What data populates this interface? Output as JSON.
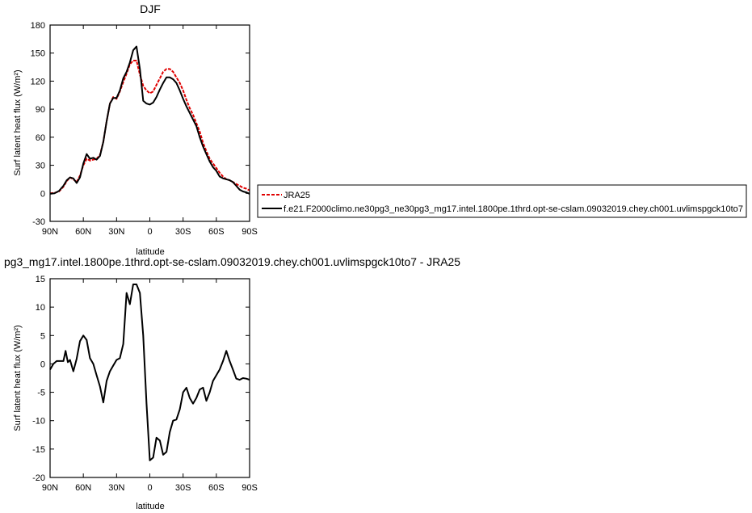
{
  "chart_data": [
    {
      "type": "line",
      "title": "DJF",
      "xlabel": "latitude",
      "ylabel": "Surf latent heat flux (W/m²)",
      "xlim": [
        -90,
        90
      ],
      "ylim": [
        -30,
        180
      ],
      "yticks": [
        -30,
        0,
        30,
        60,
        90,
        120,
        150,
        180
      ],
      "xticks": [
        -90,
        -60,
        -30,
        0,
        30,
        60,
        90
      ],
      "xticklabels": [
        "90N",
        "60N",
        "30N",
        "0",
        "30S",
        "60S",
        "90S"
      ],
      "legend": "right",
      "series": [
        {
          "name": "JRA25",
          "color": "#e00000",
          "dash": "dashed",
          "x": [
            -90,
            -86,
            -82,
            -78,
            -75,
            -72,
            -69,
            -66,
            -63,
            -60,
            -57,
            -54,
            -51,
            -48,
            -45,
            -42,
            -39,
            -36,
            -33,
            -30,
            -27,
            -24,
            -21,
            -18,
            -15,
            -12,
            -9,
            -6,
            -3,
            0,
            3,
            6,
            9,
            12,
            15,
            18,
            21,
            24,
            27,
            30,
            33,
            36,
            39,
            42,
            45,
            48,
            51,
            54,
            57,
            60,
            63,
            66,
            69,
            72,
            75,
            78,
            81,
            84,
            87,
            90
          ],
          "values": [
            0,
            0.5,
            2,
            7,
            13,
            17,
            15,
            12,
            19,
            30,
            37,
            35,
            36,
            37,
            41,
            55,
            77,
            96,
            103,
            101,
            109,
            119,
            128,
            138,
            142,
            142,
            127,
            115,
            110,
            107,
            109,
            116,
            123,
            130,
            133,
            133,
            130,
            124,
            118,
            110,
            100,
            91,
            84,
            75,
            66,
            54,
            45,
            37,
            32,
            27,
            22,
            18,
            15,
            14,
            12,
            10,
            8,
            6,
            5,
            3
          ],
          "legend_label": "JRA25"
        },
        {
          "name": "f.e21.F2000climo.ne30pg3_ne30pg3_mg17.intel.1800pe.1thrd.opt-se-cslam.09032019.chey.ch001.uvlimspgck10to7",
          "color": "#000000",
          "dash": "solid",
          "x": [
            -90,
            -86,
            -82,
            -78,
            -75,
            -72,
            -69,
            -66,
            -63,
            -60,
            -57,
            -54,
            -51,
            -48,
            -45,
            -42,
            -39,
            -36,
            -33,
            -30,
            -27,
            -24,
            -21,
            -18,
            -15,
            -12,
            -9,
            -6,
            -3,
            0,
            3,
            6,
            9,
            12,
            15,
            18,
            21,
            24,
            27,
            30,
            33,
            36,
            39,
            42,
            45,
            48,
            51,
            54,
            57,
            60,
            63,
            66,
            69,
            72,
            75,
            78,
            81,
            84,
            87,
            90
          ],
          "values": [
            -0.5,
            0,
            2.5,
            8,
            14,
            17,
            16,
            11,
            17,
            32,
            42,
            37,
            38,
            36,
            40,
            55,
            77,
            96,
            102,
            102,
            110,
            123,
            130,
            140,
            153,
            157,
            133,
            99,
            96,
            95,
            97,
            103,
            111,
            118,
            124,
            124,
            122,
            118,
            110,
            101,
            93,
            86,
            79,
            72,
            60,
            50,
            42,
            34,
            28,
            24,
            18,
            16,
            15,
            14,
            12,
            8,
            4,
            2,
            1,
            -0.5
          ],
          "legend_label": "f.e21.F2000climo.ne30pg3_ne30pg3_mg17.intel.1800pe.1thrd.opt-se-cslam.09032019.chey.ch001.uvlimspgck10to7"
        }
      ]
    },
    {
      "type": "line",
      "title": "pg3_mg17.intel.1800pe.1thrd.opt-se-cslam.09032019.chey.ch001.uvlimspgck10to7 - JRA25",
      "xlabel": "latitude",
      "ylabel": "Surf latent heat flux (W/m²)",
      "xlim": [
        -90,
        90
      ],
      "ylim": [
        -20,
        15
      ],
      "yticks": [
        -20,
        -15,
        -10,
        -5,
        0,
        5,
        10,
        15
      ],
      "xticks": [
        -90,
        -60,
        -30,
        0,
        30,
        60,
        90
      ],
      "xticklabels": [
        "90N",
        "60N",
        "30N",
        "0",
        "30S",
        "60S",
        "90S"
      ],
      "series": [
        {
          "color": "#000000",
          "x": [
            -90,
            -87,
            -84,
            -81,
            -78,
            -76,
            -74,
            -72,
            -69,
            -66,
            -63,
            -60,
            -57,
            -54,
            -51,
            -48,
            -45,
            -42,
            -39,
            -36,
            -33,
            -30,
            -27,
            -24,
            -21,
            -18,
            -15,
            -12,
            -9,
            -6,
            -3,
            0,
            3,
            6,
            9,
            12,
            15,
            18,
            21,
            24,
            27,
            30,
            33,
            36,
            39,
            42,
            45,
            48,
            51,
            54,
            57,
            60,
            63,
            66,
            69,
            72,
            75,
            78,
            81,
            84,
            87,
            90
          ],
          "values": [
            -1,
            0,
            0.5,
            0.5,
            0.5,
            2.3,
            0.3,
            0.7,
            -1.3,
            0.9,
            4,
            5,
            4.2,
            1,
            0,
            -2,
            -4,
            -6.8,
            -3,
            -1.3,
            -0.3,
            0.7,
            1,
            3.5,
            12.5,
            10.5,
            14,
            14,
            12.5,
            5,
            -7,
            -17,
            -16.5,
            -13,
            -13.5,
            -16,
            -15.5,
            -12,
            -10,
            -9.8,
            -8,
            -5,
            -4.2,
            -6,
            -7,
            -6,
            -4.5,
            -4.2,
            -6.5,
            -5,
            -3,
            -2,
            -1,
            0.5,
            2.3,
            0.5,
            -1,
            -2.6,
            -2.8,
            -2.5,
            -2.6,
            -2.8
          ],
          "legend_label": ""
        }
      ]
    }
  ]
}
